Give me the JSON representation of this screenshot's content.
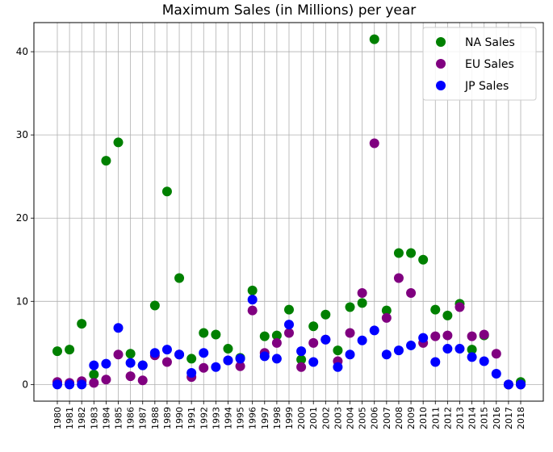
{
  "chart_data": {
    "type": "scatter",
    "title": "Maximum Sales (in Millions) per year",
    "xlabel": "",
    "ylabel": "",
    "grid": true,
    "legend_position": "top-right",
    "ylim": [
      -2,
      43.5
    ],
    "yticks": [
      0,
      10,
      20,
      30,
      40
    ],
    "categories": [
      "1980",
      "1981",
      "1982",
      "1983",
      "1984",
      "1985",
      "1986",
      "1987",
      "1988",
      "1989",
      "1990",
      "1991",
      "1992",
      "1993",
      "1994",
      "1995",
      "1996",
      "1997",
      "1998",
      "1999",
      "2000",
      "2001",
      "2002",
      "2003",
      "2004",
      "2005",
      "2006",
      "2007",
      "2008",
      "2009",
      "2010",
      "2011",
      "2012",
      "2013",
      "2014",
      "2015",
      "2016",
      "2017",
      "2018"
    ],
    "series": [
      {
        "name": "NA Sales",
        "color": "#008000",
        "values": [
          4.0,
          4.2,
          7.3,
          1.2,
          26.9,
          29.1,
          3.7,
          2.3,
          9.5,
          23.2,
          12.8,
          3.1,
          6.2,
          6.0,
          4.3,
          3.2,
          11.3,
          5.8,
          5.9,
          9.0,
          3.0,
          7.0,
          8.4,
          4.1,
          9.3,
          9.8,
          41.5,
          8.9,
          15.8,
          15.8,
          15.0,
          9.0,
          8.3,
          9.7,
          4.2,
          5.9,
          null,
          0.0,
          0.3
        ]
      },
      {
        "name": "EU Sales",
        "color": "#800080",
        "values": [
          0.3,
          0.2,
          0.4,
          0.2,
          0.6,
          3.6,
          1.0,
          0.5,
          3.5,
          2.7,
          3.6,
          0.9,
          2.0,
          null,
          2.9,
          2.2,
          8.9,
          3.8,
          5.0,
          6.2,
          2.1,
          5.0,
          5.4,
          2.8,
          6.2,
          11.0,
          29.0,
          8.0,
          12.8,
          11.0,
          5.0,
          5.8,
          5.9,
          9.3,
          5.8,
          6.0,
          3.7,
          0.0,
          0.0
        ]
      },
      {
        "name": "JP Sales",
        "color": "#0000ff",
        "values": [
          0.0,
          0.0,
          0.0,
          2.3,
          2.5,
          6.8,
          2.6,
          2.3,
          3.8,
          4.2,
          3.6,
          1.4,
          3.8,
          2.1,
          2.9,
          3.1,
          10.2,
          3.4,
          3.1,
          7.2,
          4.0,
          2.7,
          5.4,
          2.1,
          3.6,
          5.3,
          6.5,
          3.6,
          4.1,
          4.7,
          5.6,
          2.7,
          4.3,
          4.3,
          3.3,
          2.8,
          1.3,
          0.0,
          0.0
        ]
      }
    ]
  }
}
